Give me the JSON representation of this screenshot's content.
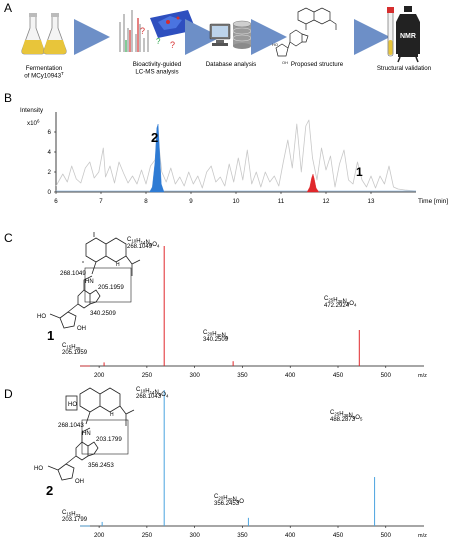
{
  "panels": {
    "a": {
      "letter": "A",
      "steps": [
        "Fermentation of MCy10943T",
        "Bioactivity-guided LC-MS analysis",
        "Database analysis",
        "Proposed structure",
        "Structural validation"
      ],
      "step_lines": [
        [
          "Fermentation",
          "of MCy10943",
          "T"
        ],
        [
          "Bioactivity-guided",
          "LC-MS analysis"
        ],
        [
          "Database analysis"
        ],
        [
          "Proposed structure"
        ],
        [
          "Structural validation"
        ]
      ],
      "nmr_label": "NMR",
      "colors": {
        "arrow": "#6d8fc7",
        "flask": "#e8c53a"
      }
    },
    "b": {
      "letter": "B",
      "ylabel": "Intensity",
      "yunit_base": "x10",
      "yunit_exp": "6",
      "xlabel": "Time [min]",
      "peak_labels": [
        "2",
        "1"
      ]
    },
    "c": {
      "letter": "C",
      "compound": "1",
      "spectrum_color": "#e0272b",
      "peaks": [
        {
          "mz": 205.1959,
          "formula": [
            "C",
            "15",
            "H",
            "25",
            "",
            ""
          ],
          "mass": "205.1959"
        },
        {
          "mz": 268.1049,
          "formula": [
            "C",
            "10",
            "H",
            "14",
            "N",
            "5",
            "O",
            "4"
          ],
          "mass": "268.1049"
        },
        {
          "mz": 340.2509,
          "formula": [
            "C",
            "20",
            "H",
            "30",
            "N",
            "5"
          ],
          "mass": "340.2509"
        },
        {
          "mz": 472.2924,
          "formula": [
            "C",
            "25",
            "H",
            "38",
            "N",
            "5",
            "O",
            "4"
          ],
          "mass": "472.2924"
        }
      ],
      "struct_labels": [
        "268.1049",
        "205.1959",
        "340.2509"
      ]
    },
    "d": {
      "letter": "D",
      "compound": "2",
      "spectrum_color": "#4aa3df",
      "peaks": [
        {
          "mz": 203.1799,
          "formula": [
            "C",
            "15",
            "H",
            "23",
            "",
            ""
          ],
          "mass": "203.1799"
        },
        {
          "mz": 268.1043,
          "formula": [
            "C",
            "10",
            "H",
            "14",
            "N",
            "5",
            "O",
            "4"
          ],
          "mass": "268.1043"
        },
        {
          "mz": 356.2453,
          "formula": [
            "C",
            "20",
            "H",
            "30",
            "N",
            "5",
            "O"
          ],
          "mass": "356.2453"
        },
        {
          "mz": 488.2873,
          "formula": [
            "C",
            "25",
            "H",
            "38",
            "N",
            "5",
            "O",
            "5"
          ],
          "mass": "488.2873"
        }
      ],
      "struct_labels": [
        "268.1043",
        "203.1799",
        "356.2453"
      ]
    }
  },
  "chart_data": [
    {
      "type": "line",
      "title": "",
      "xlabel": "Time [min]",
      "ylabel": "Intensity x10^6",
      "xlim": [
        6,
        14
      ],
      "ylim": [
        0,
        8
      ],
      "xticks": [
        6,
        7,
        8,
        9,
        10,
        11,
        12,
        13
      ],
      "yticks": [
        0,
        2,
        4,
        6
      ],
      "series": [
        {
          "color": "#c8c8c8",
          "x": [
            6.0,
            6.15,
            6.25,
            6.35,
            6.45,
            6.55,
            6.65,
            6.75,
            6.85,
            6.95,
            7.05,
            7.1,
            7.2,
            7.3,
            7.4,
            7.5,
            7.6,
            7.7,
            7.8,
            7.9,
            8.0,
            8.1,
            8.2,
            8.27,
            8.35,
            8.45,
            8.55,
            8.65,
            8.75,
            8.85,
            8.95,
            9.05,
            9.15,
            9.25,
            9.35,
            9.45,
            9.55,
            9.65,
            9.75,
            9.85,
            9.95,
            10.05,
            10.15,
            10.25,
            10.35,
            10.45,
            10.55,
            10.65,
            10.75,
            10.85,
            10.95,
            11.05,
            11.15,
            11.25,
            11.35,
            11.45,
            11.55,
            11.62,
            11.7,
            11.8,
            11.9,
            12.0,
            12.1,
            12.2,
            12.3,
            12.4,
            12.5,
            12.6,
            12.7,
            12.8,
            12.9,
            13.0,
            13.1,
            13.2,
            13.3,
            13.4,
            13.5,
            13.6,
            13.75,
            14.0
          ],
          "values": [
            0.6,
            1.8,
            1.0,
            2.6,
            1.3,
            0.9,
            2.4,
            3.0,
            1.4,
            2.0,
            4.4,
            1.5,
            2.6,
            0.9,
            3.0,
            1.9,
            0.9,
            1.6,
            0.8,
            2.2,
            0.8,
            2.6,
            3.2,
            5.4,
            2.0,
            1.0,
            2.4,
            0.8,
            1.5,
            0.6,
            2.0,
            0.8,
            1.6,
            0.4,
            2.0,
            2.6,
            1.0,
            1.5,
            0.6,
            2.8,
            1.0,
            3.4,
            1.2,
            4.2,
            0.8,
            2.0,
            0.5,
            2.0,
            1.0,
            1.6,
            0.6,
            3.0,
            5.2,
            2.4,
            6.8,
            2.0,
            6.6,
            7.2,
            3.4,
            1.2,
            4.4,
            2.2,
            3.6,
            0.5,
            2.8,
            4.2,
            1.2,
            0.8,
            3.0,
            1.2,
            0.5,
            1.6,
            0.4,
            1.6,
            0.8,
            2.6,
            0.5,
            0.3,
            0.2,
            0.1
          ]
        },
        {
          "color": "#2e7bd4",
          "x": [
            8.08,
            8.14,
            8.2,
            8.24,
            8.27,
            8.3,
            8.34,
            8.4
          ],
          "values": [
            0,
            0.5,
            3.0,
            6.4,
            6.8,
            4.2,
            0.8,
            0
          ]
        },
        {
          "color": "#e0272b",
          "x": [
            11.58,
            11.64,
            11.68,
            11.71,
            11.74,
            11.78,
            11.84
          ],
          "values": [
            0,
            0.5,
            1.4,
            1.8,
            1.3,
            0.4,
            0
          ]
        }
      ]
    },
    {
      "type": "bar",
      "xlabel": "m/z",
      "xlim": [
        180,
        540
      ],
      "xticks": [
        200,
        250,
        300,
        350,
        400,
        450,
        500
      ],
      "x": [
        205.1959,
        268.1049,
        340.2509,
        472.2924
      ],
      "values": [
        3,
        100,
        4,
        30
      ]
    },
    {
      "type": "bar",
      "xlabel": "m/z",
      "xlim": [
        180,
        540
      ],
      "xticks": [
        200,
        250,
        300,
        350,
        400,
        450,
        500
      ],
      "x": [
        203.1799,
        268.1043,
        356.2453,
        488.2873
      ],
      "values": [
        3,
        100,
        6,
        36
      ]
    }
  ]
}
